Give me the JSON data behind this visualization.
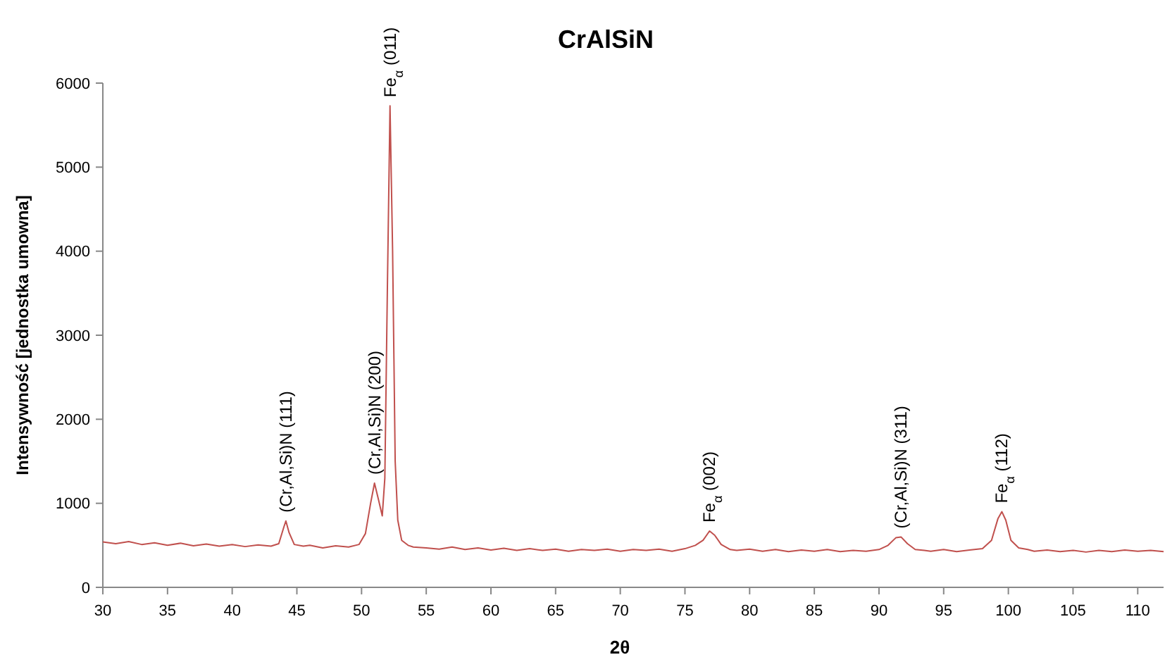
{
  "chart_data": {
    "type": "line",
    "title": "CrAlSiN",
    "xlabel": "2θ",
    "ylabel": "Intensywność [jednostka umowna]",
    "xlim": [
      30,
      112
    ],
    "xticks": [
      30,
      35,
      40,
      45,
      50,
      55,
      60,
      65,
      70,
      75,
      80,
      85,
      90,
      95,
      100,
      105,
      110
    ],
    "ylim": [
      0,
      6000
    ],
    "yticks": [
      0,
      1000,
      2000,
      3000,
      4000,
      5000,
      6000
    ],
    "grid": false,
    "marker": "none",
    "line_style": "solid",
    "series": [
      {
        "color": "#c0504d",
        "x": [
          30,
          31,
          32,
          33,
          34,
          35,
          36,
          37,
          38,
          39,
          40,
          41,
          42,
          43,
          43.6,
          44.0,
          44.15,
          44.4,
          44.8,
          45.5,
          46,
          47,
          48,
          49,
          49.8,
          50.3,
          50.7,
          51.0,
          51.3,
          51.6,
          51.8,
          52.0,
          52.2,
          52.4,
          52.6,
          52.8,
          53.1,
          53.6,
          54,
          55,
          56,
          57,
          58,
          59,
          60,
          61,
          62,
          63,
          64,
          65,
          66,
          67,
          68,
          69,
          70,
          71,
          72,
          73,
          74,
          75,
          75.8,
          76.4,
          76.9,
          77.3,
          77.8,
          78.5,
          79,
          80,
          81,
          82,
          83,
          84,
          85,
          86,
          87,
          88,
          89,
          90,
          90.7,
          91.3,
          91.7,
          92.2,
          92.8,
          93.5,
          94,
          95,
          96,
          97,
          98,
          98.7,
          99.2,
          99.5,
          99.8,
          100.2,
          100.8,
          101.5,
          102,
          103,
          104,
          105,
          106,
          107,
          108,
          109,
          110,
          111,
          112
        ],
        "values": [
          540,
          520,
          545,
          510,
          530,
          500,
          525,
          495,
          515,
          490,
          510,
          485,
          505,
          490,
          520,
          720,
          790,
          650,
          510,
          490,
          500,
          470,
          495,
          480,
          510,
          640,
          1000,
          1240,
          1050,
          850,
          1300,
          3600,
          5730,
          4000,
          1500,
          800,
          560,
          500,
          480,
          470,
          455,
          480,
          450,
          470,
          445,
          465,
          440,
          460,
          440,
          455,
          430,
          450,
          440,
          455,
          430,
          450,
          440,
          455,
          430,
          460,
          500,
          560,
          670,
          620,
          510,
          450,
          440,
          455,
          430,
          450,
          425,
          445,
          430,
          450,
          425,
          440,
          430,
          450,
          500,
          590,
          600,
          520,
          450,
          440,
          430,
          450,
          425,
          445,
          460,
          560,
          820,
          900,
          800,
          560,
          470,
          450,
          430,
          445,
          425,
          440,
          420,
          440,
          425,
          445,
          430,
          440,
          425
        ]
      }
    ],
    "annotations": [
      {
        "text": "(Cr,Al,Si)N (111)",
        "x": 44.15,
        "y": 790
      },
      {
        "text": "(Cr,Al,Si)N (200)",
        "x": 51.0,
        "y": 1240
      },
      {
        "text": "Fe$_{α}$ (011)",
        "x": 52.2,
        "y": 5730
      },
      {
        "text": "Fe$_{α}$ (002)",
        "x": 76.9,
        "y": 670
      },
      {
        "text": "(Cr,Al,Si)N (311)",
        "x": 91.7,
        "y": 600
      },
      {
        "text": "Fe$_{α}$ (112)",
        "x": 99.5,
        "y": 900
      }
    ]
  }
}
